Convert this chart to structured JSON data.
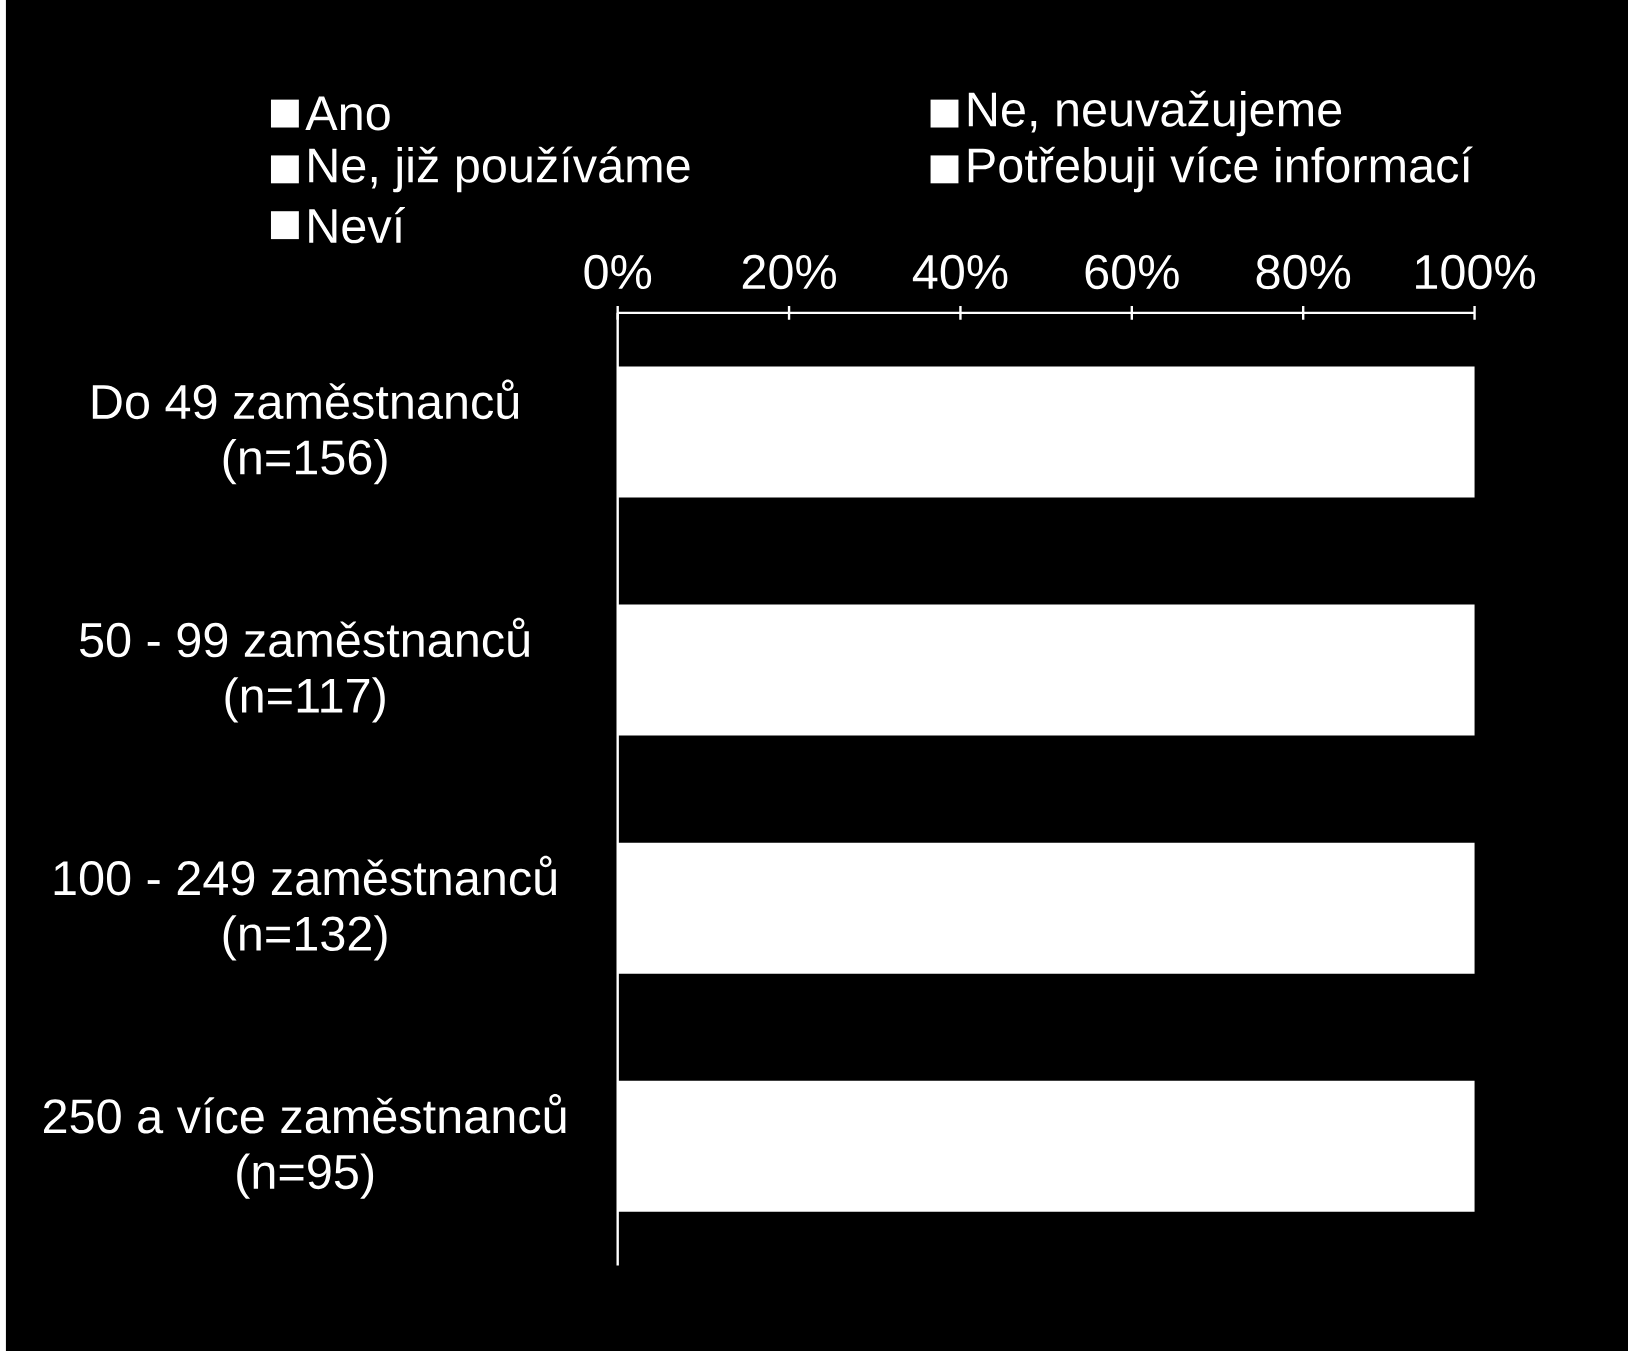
{
  "chart_data": {
    "type": "bar",
    "orientation": "horizontal",
    "categories": [
      "Do 49 zaměstnanců (n=156)",
      "50 - 99 zaměstnanců (n=117)",
      "100 - 249 zaměstnanců (n=132)",
      "250 a více zaměstnanců (n=95)"
    ],
    "values": [
      100,
      100,
      100,
      100
    ],
    "color": "#ffffff",
    "series": [
      {
        "name": "Ano",
        "color": "#ffffff",
        "values": [
          null,
          null,
          null,
          null
        ]
      },
      {
        "name": "Ne, neuvažujeme",
        "color": "#ffffff",
        "values": [
          null,
          null,
          null,
          null
        ]
      },
      {
        "name": "Ne, již používáme",
        "color": "#ffffff",
        "values": [
          null,
          null,
          null,
          null
        ]
      },
      {
        "name": "Potřebuji více informací",
        "color": "#ffffff",
        "values": [
          null,
          null,
          null,
          null
        ]
      },
      {
        "name": "Neví",
        "color": "#ffffff",
        "values": [
          null,
          null,
          null,
          null
        ]
      }
    ],
    "xlim": [
      0,
      100
    ],
    "xticks": [
      {
        "value": 0,
        "label": "0%"
      },
      {
        "value": 20,
        "label": "20%"
      },
      {
        "value": 40,
        "label": "40%"
      },
      {
        "value": 60,
        "label": "60%"
      },
      {
        "value": 80,
        "label": "80%"
      },
      {
        "value": 100,
        "label": "100%"
      }
    ],
    "legend": "top",
    "grid": false
  }
}
